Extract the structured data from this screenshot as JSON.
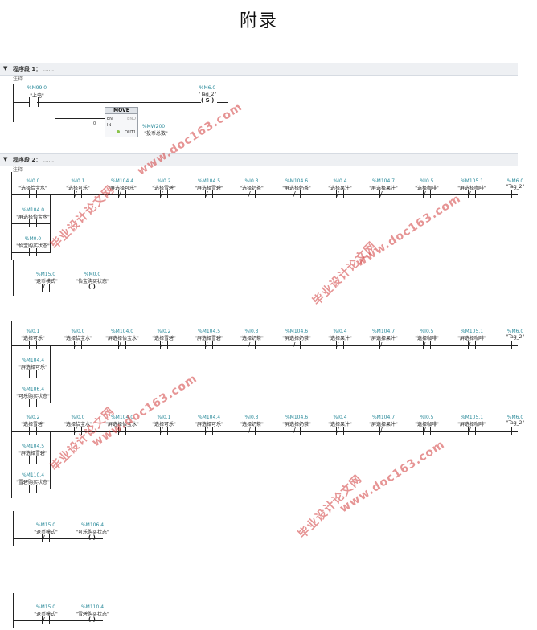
{
  "page": {
    "title": "附录"
  },
  "segments": [
    {
      "label": "程序段 1：",
      "dots": "......",
      "comment": "注释"
    },
    {
      "label": "程序段 2：",
      "dots": "......",
      "comment": "注释"
    }
  ],
  "seg1": {
    "contact": {
      "addr": "%M99.0",
      "tag": "\"上电\""
    },
    "coil": {
      "addr": "%M6.0",
      "tag": "\"Tag_2\"",
      "symbol": "S"
    },
    "move": {
      "name": "MOVE",
      "en": "EN",
      "eno": "ENO",
      "in": "IN",
      "out": "OUT1",
      "in_val": "0",
      "out_addr": "%MW200",
      "out_tag": "\"投币总数\""
    }
  },
  "row1": [
    {
      "addr": "%I0.0",
      "tag": "\"选择恰宝水\""
    },
    {
      "addr": "%I0.1",
      "tag": "\"选择可乐\""
    },
    {
      "addr": "%M104.4",
      "tag": "\"屏选择可乐\""
    },
    {
      "addr": "%I0.2",
      "tag": "\"选择雪碧\""
    },
    {
      "addr": "%M104.5",
      "tag": "\"屏选择雪碧\""
    },
    {
      "addr": "%I0.3",
      "tag": "\"选择奶茶\""
    },
    {
      "addr": "%M104.6",
      "tag": "\"屏选择奶茶\""
    },
    {
      "addr": "%I0.4",
      "tag": "\"选择果汁\""
    },
    {
      "addr": "%M104.7",
      "tag": "\"屏选择果汁\""
    },
    {
      "addr": "%I0.5",
      "tag": "\"选择咖啡\""
    },
    {
      "addr": "%M105.1",
      "tag": "\"屏选择咖啡\""
    },
    {
      "addr": "%M6.0",
      "tag": "\"Tag_2\""
    }
  ],
  "row1_branch": [
    {
      "addr": "%M104.0",
      "tag": "\"屏选择怡宝水\""
    },
    {
      "addr": "%M0.0",
      "tag": "\"怡宝购买状态\""
    }
  ],
  "out1": [
    {
      "addr": "%M15.0",
      "tag": "\"退币模式\""
    },
    {
      "addr": "%M0.0",
      "tag": "\"怡宝购买状态\""
    }
  ],
  "row2": [
    {
      "addr": "%I0.1",
      "tag": "\"选择可乐\""
    },
    {
      "addr": "%I0.0",
      "tag": "\"选择恰宝水\""
    },
    {
      "addr": "%M104.0",
      "tag": "\"屏选择怡宝水\""
    },
    {
      "addr": "%I0.2",
      "tag": "\"选择雪碧\""
    },
    {
      "addr": "%M104.5",
      "tag": "\"屏选择雪碧\""
    },
    {
      "addr": "%I0.3",
      "tag": "\"选择奶茶\""
    },
    {
      "addr": "%M104.6",
      "tag": "\"屏选择奶茶\""
    },
    {
      "addr": "%I0.4",
      "tag": "\"选择果汁\""
    },
    {
      "addr": "%M104.7",
      "tag": "\"屏选择果汁\""
    },
    {
      "addr": "%I0.5",
      "tag": "\"选择咖啡\""
    },
    {
      "addr": "%M105.1",
      "tag": "\"屏选择咖啡\""
    },
    {
      "addr": "%M6.0",
      "tag": "\"Tag_2\""
    }
  ],
  "row2_branch": [
    {
      "addr": "%M104.4",
      "tag": "\"屏选择可乐\""
    },
    {
      "addr": "%M106.4",
      "tag": "\"可乐购买状态\""
    }
  ],
  "row3": [
    {
      "addr": "%I0.2",
      "tag": "\"选择雪碧\""
    },
    {
      "addr": "%I0.0",
      "tag": "\"选择恰宝水\""
    },
    {
      "addr": "%M104.0",
      "tag": "\"屏选择怡宝水\""
    },
    {
      "addr": "%I0.1",
      "tag": "\"选择可乐\""
    },
    {
      "addr": "%M104.4",
      "tag": "\"屏选择可乐\""
    },
    {
      "addr": "%I0.3",
      "tag": "\"选择奶茶\""
    },
    {
      "addr": "%M104.6",
      "tag": "\"屏选择奶茶\""
    },
    {
      "addr": "%I0.4",
      "tag": "\"选择果汁\""
    },
    {
      "addr": "%M104.7",
      "tag": "\"屏选择果汁\""
    },
    {
      "addr": "%I0.5",
      "tag": "\"选择咖啡\""
    },
    {
      "addr": "%M105.1",
      "tag": "\"屏选择咖啡\""
    },
    {
      "addr": "%M6.0",
      "tag": "\"Tag_2\""
    }
  ],
  "row3_branch": [
    {
      "addr": "%M104.5",
      "tag": "\"屏选择雪碧\""
    },
    {
      "addr": "%M110.4",
      "tag": "\"雪碧购买状态\""
    }
  ],
  "out2": [
    {
      "addr": "%M15.0",
      "tag": "\"退币模式\""
    },
    {
      "addr": "%M106.4",
      "tag": "\"可乐购买状态\""
    }
  ],
  "out3": [
    {
      "addr": "%M15.0",
      "tag": "\"退币模式\""
    },
    {
      "addr": "%M110.4",
      "tag": "\"雪碧购买状态\""
    }
  ],
  "watermarks": {
    "url": "www.doc163.com",
    "cn": "毕业设计论文网"
  },
  "colors": {
    "address": "#2a8a9a",
    "watermark": "#d23c3c",
    "bar": "#eef0f3"
  }
}
